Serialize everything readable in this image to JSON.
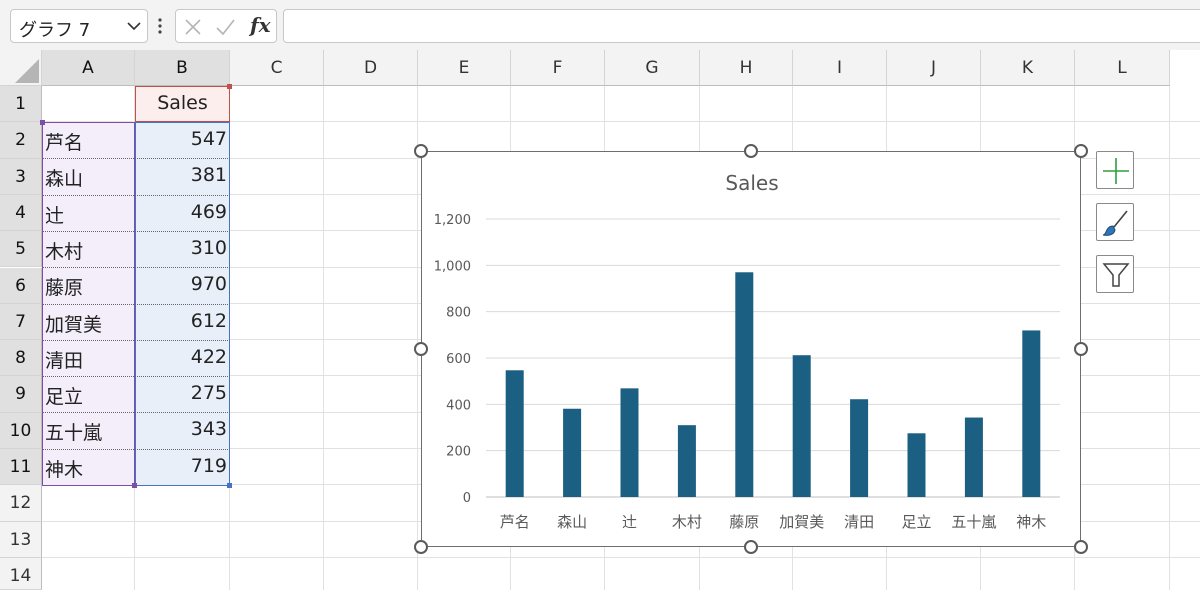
{
  "formula_bar": {
    "name_box": "グラフ 7",
    "fx_label": "fx",
    "formula": ""
  },
  "columns": [
    "A",
    "B",
    "C",
    "D",
    "E",
    "F",
    "G",
    "H",
    "I",
    "J",
    "K",
    "L"
  ],
  "rows": [
    "1",
    "2",
    "3",
    "4",
    "5",
    "6",
    "7",
    "8",
    "9",
    "10",
    "11",
    "12",
    "13",
    "14"
  ],
  "sheet": {
    "header": "Sales",
    "names": [
      "芦名",
      "森山",
      "辻",
      "木村",
      "藤原",
      "加賀美",
      "清田",
      "足立",
      "五十嵐",
      "神木"
    ],
    "values": [
      "547",
      "381",
      "469",
      "310",
      "970",
      "612",
      "422",
      "275",
      "343",
      "719"
    ]
  },
  "chart_data": {
    "type": "bar",
    "title": "Sales",
    "categories": [
      "芦名",
      "森山",
      "辻",
      "木村",
      "藤原",
      "加賀美",
      "清田",
      "足立",
      "五十嵐",
      "神木"
    ],
    "values": [
      547,
      381,
      469,
      310,
      970,
      612,
      422,
      275,
      343,
      719
    ],
    "ylim": [
      0,
      1200
    ],
    "yticks": [
      "0",
      "200",
      "400",
      "600",
      "800",
      "1,000",
      "1,200"
    ],
    "bar_color": "#1b5f82",
    "grid": true,
    "legend": "none"
  },
  "chart_tools": [
    "chart-elements-icon",
    "chart-styles-icon",
    "chart-filters-icon"
  ]
}
